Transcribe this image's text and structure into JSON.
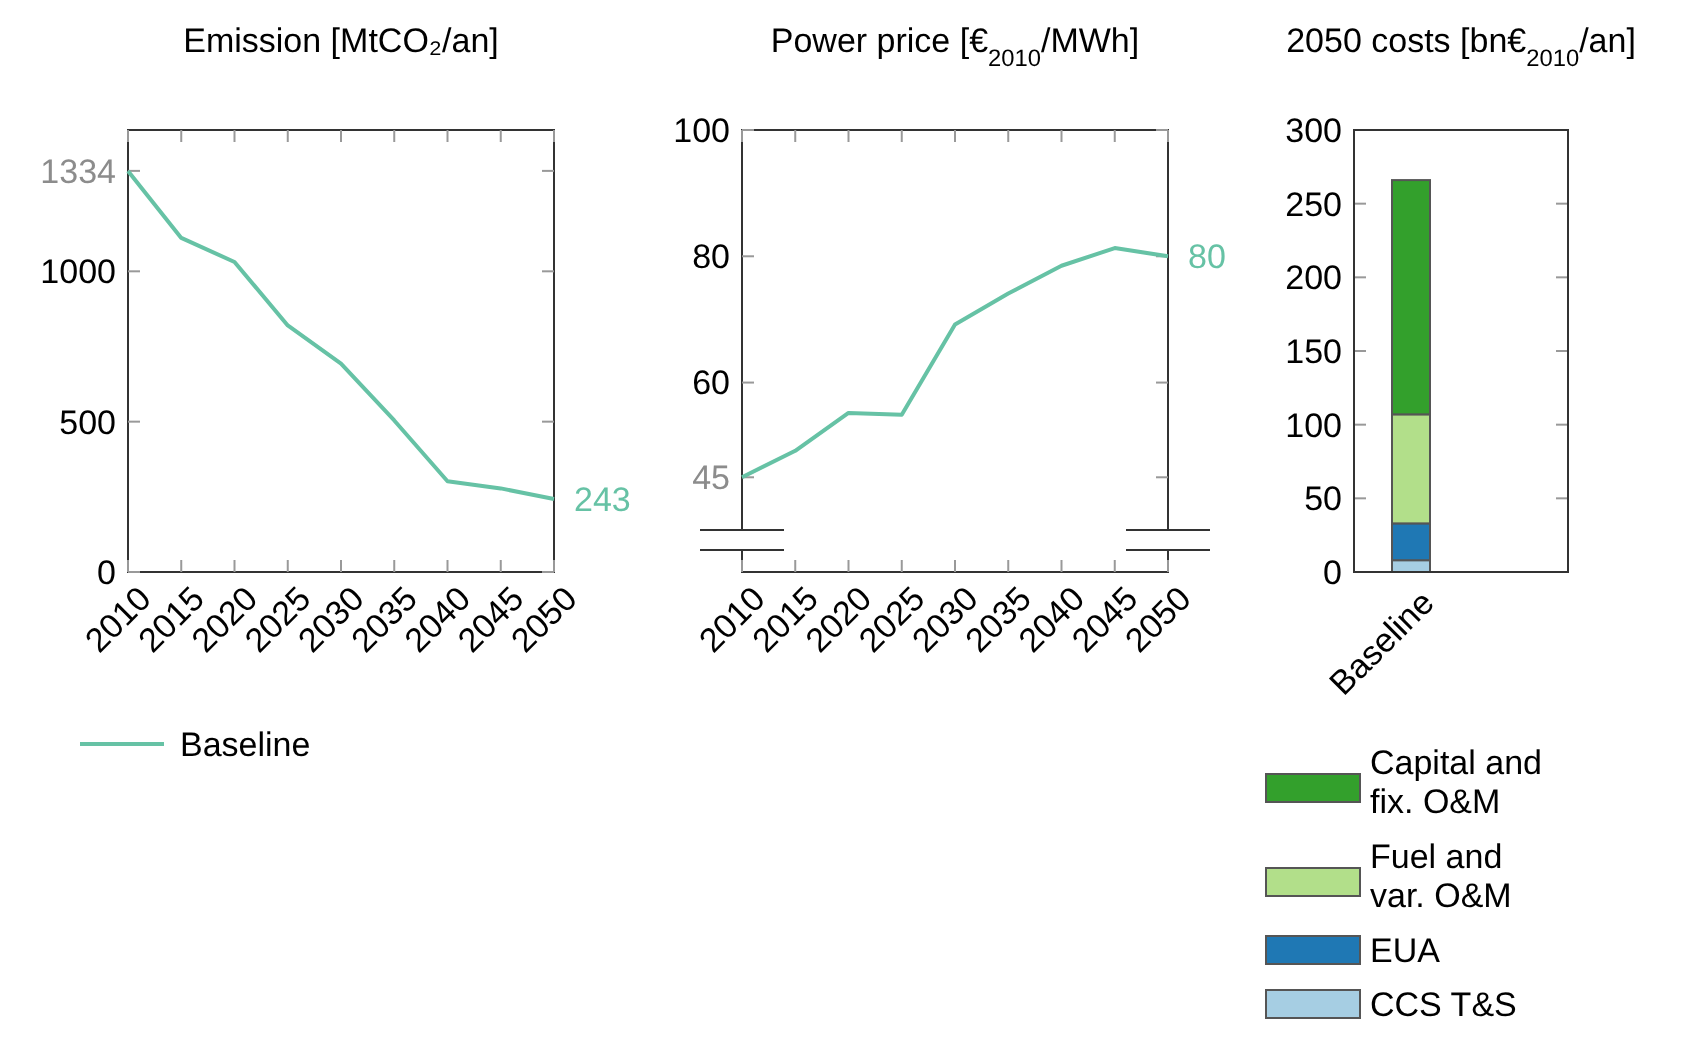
{
  "chart_data": [
    {
      "type": "line",
      "title": "Emission [MtCO₂/an]",
      "x": [
        2010,
        2015,
        2020,
        2025,
        2030,
        2035,
        2040,
        2045,
        2050
      ],
      "xlim": [
        2010,
        2050
      ],
      "xticks": [
        2010,
        2015,
        2020,
        2025,
        2030,
        2035,
        2040,
        2045,
        2050
      ],
      "ylim": [
        0,
        1470
      ],
      "yticks": [
        0,
        500,
        1000,
        {
          "value": 1334,
          "label": "1334"
        }
      ],
      "legend": "bottom",
      "series": [
        {
          "name": "Baseline",
          "color": "#66c2a5",
          "values": [
            1334,
            1111,
            1031,
            820,
            693,
            504,
            302,
            278,
            243
          ]
        }
      ],
      "annotations": [
        {
          "text": "243",
          "x": 2050,
          "y": 243
        }
      ]
    },
    {
      "type": "line",
      "title": "Power price [€$_{2010}$/MWh]",
      "x": [
        2010,
        2015,
        2020,
        2025,
        2030,
        2035,
        2040,
        2045,
        2050
      ],
      "xlim": [
        2010,
        2050
      ],
      "xticks": [
        2010,
        2015,
        2020,
        2025,
        2030,
        2035,
        2040,
        2045,
        2050
      ],
      "ylim": [
        30,
        100
      ],
      "yticks": [
        {
          "value": 45,
          "label": "45"
        },
        60,
        80,
        100
      ],
      "series": [
        {
          "color": "#66c2a5",
          "values": [
            45,
            49.2,
            55.2,
            54.9,
            69.2,
            74.1,
            78.5,
            81.3,
            80
          ]
        }
      ],
      "annotations": [
        {
          "text": "80",
          "x": 2050,
          "y": 80
        }
      ]
    },
    {
      "type": "bar",
      "stacked": true,
      "title": "2050 costs [bn€$_{2010}$/an]",
      "categories": [
        "Baseline"
      ],
      "ylim": [
        0,
        300
      ],
      "yticks": [
        0,
        50,
        100,
        150,
        200,
        250,
        300
      ],
      "legend": "bottom",
      "series": [
        {
          "name": "CCS T&S",
          "color": "#a6cee3",
          "values": [
            8
          ]
        },
        {
          "name": "EUA",
          "color": "#1f78b4",
          "values": [
            25
          ]
        },
        {
          "name": "Fuel and var. O&M",
          "color": "#b2df8a",
          "values": [
            74
          ]
        },
        {
          "name": "Capital and fix. O&M",
          "color": "#33a02c",
          "values": [
            159
          ]
        }
      ]
    }
  ]
}
